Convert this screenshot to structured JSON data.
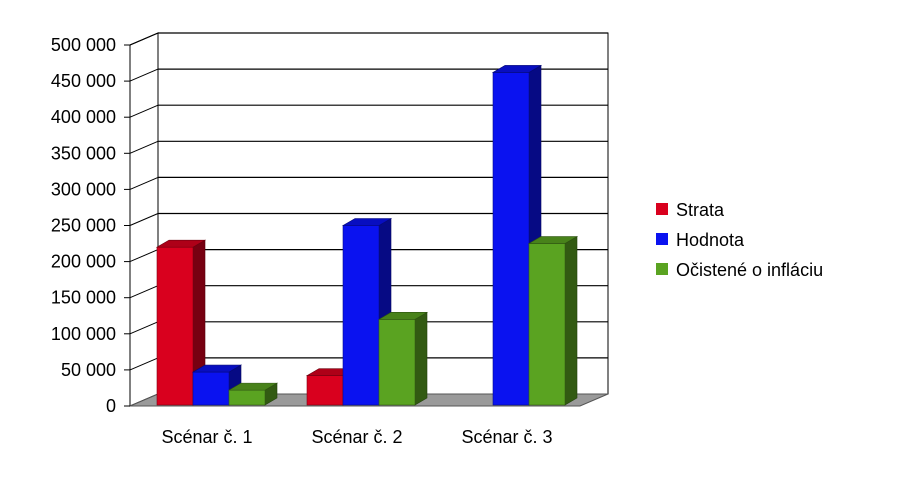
{
  "chart_data": {
    "type": "bar",
    "categories": [
      "Scénar č. 1",
      "Scénar č. 2",
      "Scénar č. 3"
    ],
    "series": [
      {
        "name": "Strata",
        "color": "#d9001e",
        "values": [
          220000,
          42000,
          0
        ]
      },
      {
        "name": "Hodnota",
        "color": "#0a12f0",
        "values": [
          47000,
          250000,
          462000
        ]
      },
      {
        "name": "Očistené o infláciu",
        "color": "#5aa321",
        "values": [
          22000,
          120000,
          225000
        ]
      }
    ],
    "ylim": [
      0,
      500000
    ],
    "yticks": [
      "0",
      "50 000",
      "100 000",
      "150 000",
      "200 000",
      "250 000",
      "300 000",
      "350 000",
      "400 000",
      "450 000",
      "500 000"
    ],
    "ytick_values": [
      0,
      50000,
      100000,
      150000,
      200000,
      250000,
      300000,
      350000,
      400000,
      450000,
      500000
    ],
    "grid": true,
    "legend_position": "right",
    "style": "3d-clustered-column"
  }
}
